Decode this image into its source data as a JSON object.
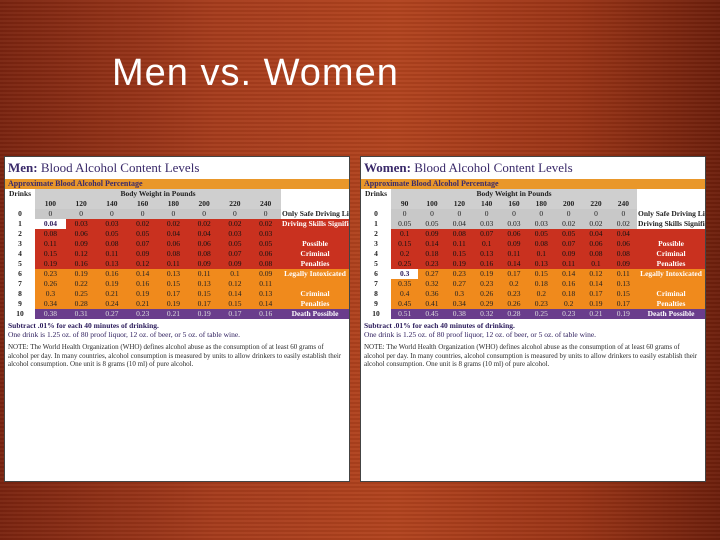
{
  "slide": {
    "title": "Men vs. Women"
  },
  "men": {
    "title_bold": "Men:",
    "title_rest": " Blood Alcohol Content Levels",
    "subheader": "Approximate Blood Alcohol Percentage",
    "drinks_label": "Drinks",
    "weight_label": "Body Weight in Pounds",
    "weights": [
      "100",
      "120",
      "140",
      "160",
      "180",
      "200",
      "220",
      "240"
    ],
    "rows": [
      {
        "d": "0",
        "v": [
          "0",
          "0",
          "0",
          "0",
          "0",
          "0",
          "0",
          "0"
        ],
        "band": "grey",
        "label": "Only Safe Driving Limit"
      },
      {
        "d": "1",
        "v": [
          "0.04",
          "0.03",
          "0.03",
          "0.02",
          "0.02",
          "0.02",
          "0.02",
          "0.02"
        ],
        "band": "red-first",
        "label": "Driving Skills Significantly Affected"
      },
      {
        "d": "2",
        "v": [
          "0.08",
          "0.06",
          "0.05",
          "0.05",
          "0.04",
          "0.04",
          "0.03",
          "0.03"
        ],
        "band": "red",
        "label": ""
      },
      {
        "d": "3",
        "v": [
          "0.11",
          "0.09",
          "0.08",
          "0.07",
          "0.06",
          "0.06",
          "0.05",
          "0.05"
        ],
        "band": "red",
        "label": "Possible"
      },
      {
        "d": "4",
        "v": [
          "0.15",
          "0.12",
          "0.11",
          "0.09",
          "0.08",
          "0.08",
          "0.07",
          "0.06"
        ],
        "band": "red",
        "label": "Criminal"
      },
      {
        "d": "5",
        "v": [
          "0.19",
          "0.16",
          "0.13",
          "0.12",
          "0.11",
          "0.09",
          "0.09",
          "0.08"
        ],
        "band": "red",
        "label": "Penalties"
      },
      {
        "d": "6",
        "v": [
          "0.23",
          "0.19",
          "0.16",
          "0.14",
          "0.13",
          "0.11",
          "0.1",
          "0.09"
        ],
        "band": "orange",
        "label": "Legally Intoxicated"
      },
      {
        "d": "7",
        "v": [
          "0.26",
          "0.22",
          "0.19",
          "0.16",
          "0.15",
          "0.13",
          "0.12",
          "0.11"
        ],
        "band": "orange",
        "label": ""
      },
      {
        "d": "8",
        "v": [
          "0.3",
          "0.25",
          "0.21",
          "0.19",
          "0.17",
          "0.15",
          "0.14",
          "0.13"
        ],
        "band": "orange",
        "label": "Criminal"
      },
      {
        "d": "9",
        "v": [
          "0.34",
          "0.28",
          "0.24",
          "0.21",
          "0.19",
          "0.17",
          "0.15",
          "0.14"
        ],
        "band": "orange",
        "label": "Penalties"
      },
      {
        "d": "10",
        "v": [
          "0.38",
          "0.31",
          "0.27",
          "0.23",
          "0.21",
          "0.19",
          "0.17",
          "0.16"
        ],
        "band": "purple",
        "label": "Death Possible"
      }
    ],
    "footer1": "Subtract .01% for each 40 minutes of drinking.",
    "footer2": "One drink is 1.25 oz. of 80 proof liquor, 12 oz. of beer, or 5 oz. of table wine.",
    "note": "NOTE: The World Health Organization (WHO) defines alcohol abuse as the consumption of at least 60 grams of alcohol per day. In many countries, alcohol consumption is measured by units to allow drinkers to easily establish their alcohol consumption. One unit is 8 grams (10 ml) of pure alcohol."
  },
  "women": {
    "title_bold": "Women:",
    "title_rest": " Blood Alcohol Content Levels",
    "subheader": "Approximate Blood Alcohol Percentage",
    "drinks_label": "Drinks",
    "weight_label": "Body Weight in Pounds",
    "weights": [
      "90",
      "100",
      "120",
      "140",
      "160",
      "180",
      "200",
      "220",
      "240"
    ],
    "rows": [
      {
        "d": "0",
        "v": [
          "0",
          "0",
          "0",
          "0",
          "0",
          "0",
          "0",
          "0",
          "0"
        ],
        "band": "grey",
        "label": "Only Safe Driving Limit"
      },
      {
        "d": "1",
        "v": [
          "0.05",
          "0.05",
          "0.04",
          "0.03",
          "0.03",
          "0.03",
          "0.02",
          "0.02",
          "0.02"
        ],
        "band": "grey",
        "label": "Driving Skills Significantly Affected"
      },
      {
        "d": "2",
        "v": [
          "0.1",
          "0.09",
          "0.08",
          "0.07",
          "0.06",
          "0.05",
          "0.05",
          "0.04",
          "0.04"
        ],
        "band": "red",
        "label": ""
      },
      {
        "d": "3",
        "v": [
          "0.15",
          "0.14",
          "0.11",
          "0.1",
          "0.09",
          "0.08",
          "0.07",
          "0.06",
          "0.06"
        ],
        "band": "red",
        "label": "Possible"
      },
      {
        "d": "4",
        "v": [
          "0.2",
          "0.18",
          "0.15",
          "0.13",
          "0.11",
          "0.1",
          "0.09",
          "0.08",
          "0.08"
        ],
        "band": "red",
        "label": "Criminal"
      },
      {
        "d": "5",
        "v": [
          "0.25",
          "0.23",
          "0.19",
          "0.16",
          "0.14",
          "0.13",
          "0.11",
          "0.1",
          "0.09"
        ],
        "band": "red",
        "label": "Penalties"
      },
      {
        "d": "6",
        "v": [
          "0.3",
          "0.27",
          "0.23",
          "0.19",
          "0.17",
          "0.15",
          "0.14",
          "0.12",
          "0.11"
        ],
        "band": "orange-first",
        "label": "Legally Intoxicated"
      },
      {
        "d": "7",
        "v": [
          "0.35",
          "0.32",
          "0.27",
          "0.23",
          "0.2",
          "0.18",
          "0.16",
          "0.14",
          "0.13"
        ],
        "band": "orange",
        "label": ""
      },
      {
        "d": "8",
        "v": [
          "0.4",
          "0.36",
          "0.3",
          "0.26",
          "0.23",
          "0.2",
          "0.18",
          "0.17",
          "0.15"
        ],
        "band": "orange",
        "label": "Criminal"
      },
      {
        "d": "9",
        "v": [
          "0.45",
          "0.41",
          "0.34",
          "0.29",
          "0.26",
          "0.23",
          "0.2",
          "0.19",
          "0.17"
        ],
        "band": "orange",
        "label": "Penalties"
      },
      {
        "d": "10",
        "v": [
          "0.51",
          "0.45",
          "0.38",
          "0.32",
          "0.28",
          "0.25",
          "0.23",
          "0.21",
          "0.19"
        ],
        "band": "purple",
        "label": "Death Possible"
      }
    ],
    "footer1": "Subtract .01% for each 40 minutes of drinking.",
    "footer2": "One drink is 1.25 oz. of 80 proof liquor, 12 oz. of beer, or 5 oz. of table wine.",
    "note": "NOTE: The World Health Organization (WHO) defines alcohol abuse as the consumption of at least 60 grams of alcohol per day. In many countries, alcohol consumption is measured by units to allow drinkers to easily establish their alcohol consumption. One unit is 8 grams (10 ml) of pure alcohol."
  }
}
